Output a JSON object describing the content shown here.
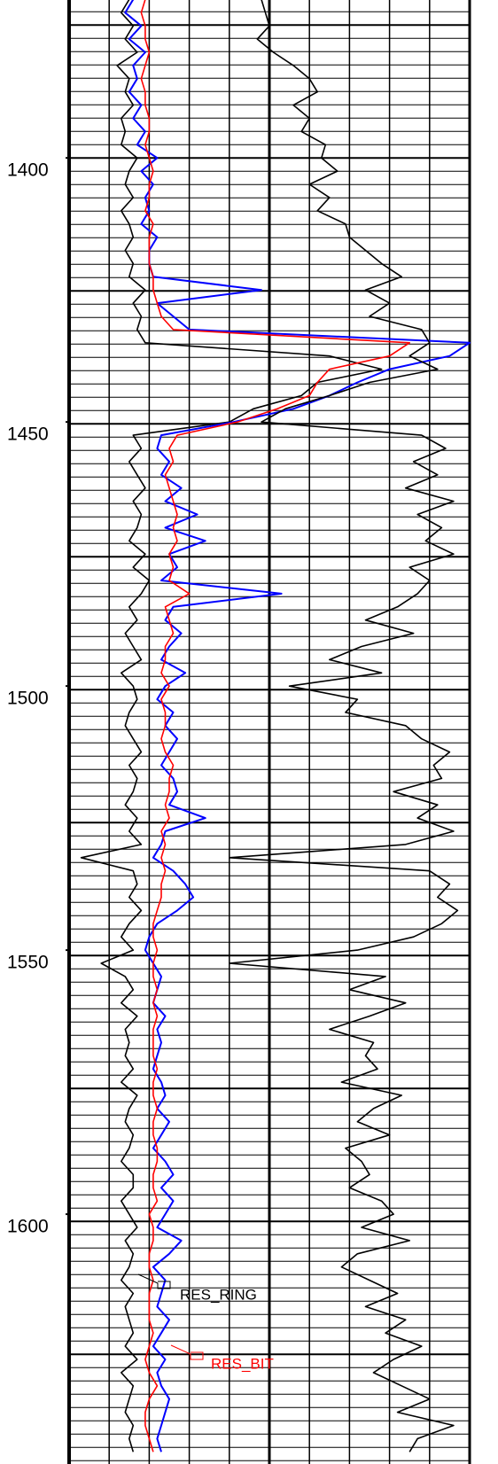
{
  "chart_data": {
    "type": "line",
    "x": [
      1370,
      1372.5,
      1375,
      1377.5,
      1380,
      1382.5,
      1385,
      1387.5,
      1390,
      1392.5,
      1395,
      1397.5,
      1400,
      1402.5,
      1405,
      1407.5,
      1410,
      1412.5,
      1415,
      1417.5,
      1420,
      1422.5,
      1425,
      1427.5,
      1430,
      1432.5,
      1435,
      1437.5,
      1440,
      1442.5,
      1445,
      1447.5,
      1450,
      1452.5,
      1455,
      1457.5,
      1460,
      1462.5,
      1465,
      1467.5,
      1470,
      1472.5,
      1475,
      1477.5,
      1480,
      1482.5,
      1485,
      1487.5,
      1490,
      1492.5,
      1495,
      1497.5,
      1500,
      1502.5,
      1505,
      1507.5,
      1510,
      1512.5,
      1515,
      1517.5,
      1520,
      1522.5,
      1525,
      1527.5,
      1530,
      1532.5,
      1535,
      1537.5,
      1540,
      1542.5,
      1545,
      1547.5,
      1550,
      1552.5,
      1555,
      1557.5,
      1560,
      1562.5,
      1565,
      1567.5,
      1570,
      1572.5,
      1575,
      1577.5,
      1580,
      1582.5,
      1585,
      1587.5,
      1590,
      1592.5,
      1595,
      1597.5,
      1600,
      1602.5,
      1605,
      1607.5,
      1610,
      1612.5,
      1615,
      1617.5,
      1620,
      1622.5,
      1625,
      1627.5,
      1630,
      1632.5,
      1635,
      1637.5,
      1640,
      1642.5,
      1645
    ],
    "series": [
      {
        "name": "RES_RING",
        "color": "#000000",
        "values": [
          1.5,
          1.3,
          1.6,
          1.4,
          1.7,
          1.2,
          1.5,
          1.4,
          1.6,
          1.3,
          1.4,
          1.3,
          1.7,
          1.5,
          1.4,
          1.6,
          1.3,
          1.5,
          1.6,
          1.4,
          1.6,
          1.5,
          1.9,
          1.6,
          1.8,
          1.7,
          1.9,
          6.5,
          7.8,
          6.2,
          5.8,
          4.6,
          4.0,
          1.6,
          1.8,
          1.5,
          1.7,
          1.9,
          1.6,
          1.8,
          1.7,
          1.5,
          1.9,
          1.6,
          2.0,
          1.8,
          1.5,
          1.7,
          1.4,
          1.6,
          1.8,
          1.3,
          1.6,
          1.7,
          1.5,
          1.4,
          1.6,
          1.8,
          1.5,
          1.7,
          1.6,
          1.4,
          1.7,
          1.5,
          1.8,
          0.3,
          1.6,
          1.7,
          1.5,
          1.8,
          1.5,
          1.3,
          1.6,
          0.8,
          1.4,
          1.6,
          1.3,
          1.7,
          1.4,
          1.5,
          1.4,
          1.6,
          1.3,
          1.7,
          1.5,
          1.4,
          1.6,
          1.5,
          1.3,
          1.6,
          1.6,
          1.3,
          1.5,
          1.7,
          1.4,
          1.6,
          1.5,
          1.3,
          1.6,
          1.4,
          1.5,
          1.6,
          1.4,
          1.7,
          1.3,
          1.6,
          1.5,
          1.4,
          1.6,
          1.5,
          1.6
        ]
      },
      {
        "color": "#0000ff",
        "values": [
          1.6,
          1.4,
          1.8,
          1.5,
          1.9,
          1.6,
          1.7,
          1.5,
          1.8,
          1.6,
          1.9,
          1.7,
          2.2,
          1.8,
          2.1,
          1.9,
          2.0,
          1.8,
          2.2,
          2.0,
          2.0,
          2.1,
          4.8,
          2.2,
          2.6,
          3.0,
          10.0,
          9.5,
          8.0,
          7.2,
          6.5,
          5.6,
          4.1,
          2.3,
          2.2,
          2.5,
          2.3,
          2.8,
          2.4,
          3.2,
          2.4,
          3.4,
          2.5,
          2.7,
          2.3,
          5.3,
          2.6,
          2.4,
          2.8,
          2.5,
          2.3,
          2.9,
          2.4,
          2.2,
          2.6,
          2.4,
          2.7,
          2.5,
          2.3,
          2.6,
          2.7,
          2.5,
          3.4,
          2.4,
          2.3,
          2.1,
          2.6,
          2.9,
          3.1,
          2.7,
          2.2,
          2.0,
          1.9,
          2.1,
          2.3,
          2.2,
          2.1,
          2.4,
          2.2,
          2.3,
          2.2,
          2.1,
          2.3,
          2.4,
          2.2,
          2.5,
          2.3,
          2.1,
          2.4,
          2.6,
          2.3,
          2.6,
          2.4,
          2.2,
          2.8,
          2.5,
          2.1,
          2.4,
          2.3,
          2.2,
          2.5,
          2.3,
          2.1,
          2.4,
          2.2,
          2.3,
          2.5,
          2.4,
          2.3,
          2.2,
          2.3
        ]
      },
      {
        "name": "RES_BIT",
        "color": "#ff0000",
        "values": [
          1.9,
          1.8,
          1.9,
          1.9,
          2.0,
          1.9,
          1.8,
          1.9,
          1.9,
          2.0,
          2.0,
          1.9,
          2.0,
          2.1,
          2.0,
          2.0,
          1.9,
          2.1,
          2.0,
          2.0,
          2.0,
          2.1,
          2.1,
          2.2,
          2.3,
          2.6,
          8.5,
          8.0,
          6.5,
          6.2,
          6.0,
          5.2,
          4.2,
          2.7,
          2.5,
          2.6,
          2.4,
          2.5,
          2.6,
          2.7,
          2.6,
          2.7,
          2.5,
          2.6,
          2.5,
          3.0,
          2.4,
          2.5,
          2.6,
          2.4,
          2.4,
          2.3,
          2.5,
          2.3,
          2.4,
          2.4,
          2.3,
          2.4,
          2.6,
          2.5,
          2.5,
          2.4,
          2.5,
          2.3,
          2.4,
          2.3,
          2.4,
          2.3,
          2.3,
          2.2,
          2.1,
          2.1,
          2.2,
          2.1,
          2.1,
          2.2,
          2.1,
          2.2,
          2.1,
          2.1,
          2.1,
          2.2,
          2.1,
          2.1,
          2.2,
          2.1,
          2.1,
          2.2,
          2.2,
          2.1,
          2.1,
          2.2,
          2.0,
          2.1,
          2.1,
          2.0,
          2.0,
          2.1,
          2.0,
          2.0,
          2.0,
          2.1,
          2.0,
          1.9,
          2.0,
          2.2,
          2.0,
          1.9,
          1.9,
          2.0,
          2.1
        ]
      },
      {
        "color": "#000000",
        "values": [
          4.8,
          4.9,
          5.0,
          4.7,
          5.1,
          5.6,
          6.0,
          6.2,
          5.6,
          6.0,
          5.8,
          6.4,
          6.3,
          6.7,
          6.0,
          6.5,
          6.2,
          6.9,
          7.0,
          7.4,
          7.8,
          8.3,
          7.4,
          8.0,
          7.5,
          8.8,
          9.0,
          8.5,
          9.2,
          7.5,
          6.5,
          5.4,
          4.8,
          8.8,
          9.4,
          8.6,
          9.2,
          8.4,
          9.6,
          8.7,
          9.3,
          8.9,
          9.6,
          8.5,
          9.0,
          8.7,
          8.2,
          7.4,
          8.6,
          7.3,
          6.5,
          7.8,
          5.5,
          7.2,
          6.9,
          8.4,
          8.8,
          9.5,
          9.1,
          9.3,
          8.1,
          9.2,
          8.7,
          9.6,
          8.4,
          4.0,
          9.0,
          9.5,
          9.2,
          9.7,
          9.3,
          8.6,
          7.2,
          4.0,
          7.9,
          7.0,
          8.4,
          7.5,
          6.5,
          7.6,
          7.4,
          7.7,
          6.8,
          8.3,
          7.6,
          7.2,
          8.0,
          6.9,
          7.3,
          7.5,
          7.0,
          7.8,
          8.1,
          7.3,
          8.5,
          7.2,
          6.8,
          7.5,
          8.2,
          7.4,
          8.4,
          7.9,
          8.8,
          8.1,
          7.6,
          8.3,
          9.0,
          8.2,
          9.6,
          8.7,
          8.5
        ]
      }
    ],
    "ylim": [
      1370.1,
      1647.3
    ],
    "yticks": [
      1400,
      1450,
      1500,
      1550,
      1600
    ],
    "xlim": [
      0,
      10
    ],
    "xticks": [
      0,
      1,
      2,
      3,
      4,
      5,
      6,
      7,
      8,
      9,
      10
    ],
    "grid": true
  }
}
